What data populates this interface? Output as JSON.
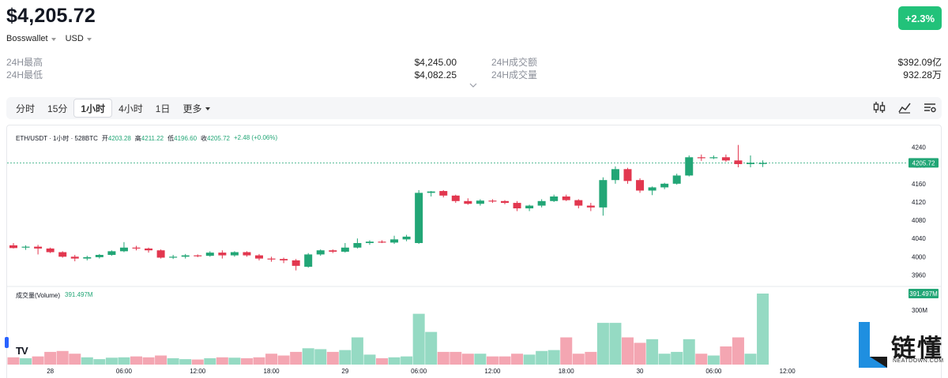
{
  "header": {
    "price": "$4,205.72",
    "change_badge": "+2.3%",
    "exchange": "Bosswallet",
    "currency": "USD"
  },
  "stats": {
    "high_label": "24H最高",
    "high_value": "$4,245.00",
    "low_label": "24H最低",
    "low_value": "$4,082.25",
    "turnover_label": "24H成交额",
    "turnover_value": "$392.09亿",
    "volume_label": "24H成交量",
    "volume_value": "932.28万"
  },
  "tabs": [
    "分时",
    "15分",
    "1小时",
    "4小时",
    "1日",
    "更多"
  ],
  "active_tab": "1小时",
  "icons": [
    "candlestick-icon",
    "indicator-icon",
    "settings-icon",
    "chevron-down-icon"
  ],
  "colors": {
    "up": "#22a676",
    "down": "#e2374f",
    "badge": "#22c27a",
    "accent": "#2962ff"
  },
  "chart_legend": {
    "symbol": "ETH/USDT · 1小时 · 528BTC",
    "open_label": "开",
    "open": "4203.28",
    "high_label": "高",
    "high": "4211.22",
    "low_label": "低",
    "low": "4196.60",
    "close_label": "收",
    "close": "4205.72",
    "change": "+2.48 (+0.06%)"
  },
  "volume_legend": {
    "label": "成交量(Volume)",
    "value": "391.497M"
  },
  "watermark": {
    "text": "链懂",
    "sub": "NEATDOWN.COM"
  },
  "chart_data": {
    "type": "candlestick",
    "price_axis": {
      "ylim": [
        3940,
        4260
      ],
      "ticks": [
        3960,
        4000,
        4040,
        4080,
        4120,
        4160,
        4200,
        4240
      ],
      "last_price": "4205.72",
      "last_value": 4205.72
    },
    "volume_axis": {
      "max_label": "391.497M",
      "tick_label": "300M",
      "tick_value": 300,
      "max_value": 391.497
    },
    "x_labels": [
      "28",
      "06:00",
      "12:00",
      "18:00",
      "29",
      "06:00",
      "12:00",
      "18:00",
      "30",
      "06:00",
      "12:00"
    ],
    "x_label_index": [
      3,
      9,
      15,
      21,
      27,
      33,
      39,
      45,
      51,
      57,
      63
    ],
    "candles": [
      {
        "o": 4025,
        "h": 4030,
        "l": 4018,
        "c": 4019,
        "v": 40
      },
      {
        "o": 4020,
        "h": 4025,
        "l": 4015,
        "c": 4022,
        "v": 35
      },
      {
        "o": 4022,
        "h": 4026,
        "l": 4005,
        "c": 4018,
        "v": 45
      },
      {
        "o": 4018,
        "h": 4020,
        "l": 4008,
        "c": 4010,
        "v": 70
      },
      {
        "o": 4010,
        "h": 4012,
        "l": 3998,
        "c": 4000,
        "v": 75
      },
      {
        "o": 4000,
        "h": 4004,
        "l": 3990,
        "c": 3996,
        "v": 60
      },
      {
        "o": 3996,
        "h": 4002,
        "l": 3992,
        "c": 3999,
        "v": 40
      },
      {
        "o": 3999,
        "h": 4006,
        "l": 3996,
        "c": 4004,
        "v": 30
      },
      {
        "o": 4004,
        "h": 4014,
        "l": 4002,
        "c": 4012,
        "v": 38
      },
      {
        "o": 4012,
        "h": 4032,
        "l": 4010,
        "c": 4020,
        "v": 40
      },
      {
        "o": 4020,
        "h": 4024,
        "l": 4014,
        "c": 4018,
        "v": 45
      },
      {
        "o": 4018,
        "h": 4020,
        "l": 4009,
        "c": 4014,
        "v": 40
      },
      {
        "o": 4014,
        "h": 4016,
        "l": 3996,
        "c": 3998,
        "v": 50
      },
      {
        "o": 3998,
        "h": 4004,
        "l": 3995,
        "c": 4000,
        "v": 35
      },
      {
        "o": 4000,
        "h": 4006,
        "l": 3996,
        "c": 4003,
        "v": 30
      },
      {
        "o": 4003,
        "h": 4005,
        "l": 3999,
        "c": 4002,
        "v": 28
      },
      {
        "o": 4002,
        "h": 4012,
        "l": 4000,
        "c": 4009,
        "v": 35
      },
      {
        "o": 4009,
        "h": 4014,
        "l": 3996,
        "c": 4003,
        "v": 40
      },
      {
        "o": 4003,
        "h": 4012,
        "l": 4000,
        "c": 4010,
        "v": 38
      },
      {
        "o": 4010,
        "h": 4012,
        "l": 4000,
        "c": 4003,
        "v": 35
      },
      {
        "o": 4003,
        "h": 4006,
        "l": 3992,
        "c": 3996,
        "v": 40
      },
      {
        "o": 3996,
        "h": 4000,
        "l": 3989,
        "c": 3995,
        "v": 60
      },
      {
        "o": 3995,
        "h": 3998,
        "l": 3986,
        "c": 3992,
        "v": 50
      },
      {
        "o": 3992,
        "h": 3995,
        "l": 3970,
        "c": 3980,
        "v": 70
      },
      {
        "o": 3978,
        "h": 4008,
        "l": 3976,
        "c": 4005,
        "v": 90
      },
      {
        "o": 4005,
        "h": 4016,
        "l": 4002,
        "c": 4014,
        "v": 85
      },
      {
        "o": 4014,
        "h": 4016,
        "l": 4008,
        "c": 4011,
        "v": 70
      },
      {
        "o": 4011,
        "h": 4030,
        "l": 4009,
        "c": 4020,
        "v": 80
      },
      {
        "o": 4020,
        "h": 4040,
        "l": 4018,
        "c": 4030,
        "v": 150
      },
      {
        "o": 4030,
        "h": 4036,
        "l": 4026,
        "c": 4033,
        "v": 55
      },
      {
        "o": 4033,
        "h": 4036,
        "l": 4030,
        "c": 4031,
        "v": 35
      },
      {
        "o": 4031,
        "h": 4046,
        "l": 4028,
        "c": 4038,
        "v": 40
      },
      {
        "o": 4038,
        "h": 4048,
        "l": 4034,
        "c": 4044,
        "v": 45
      },
      {
        "o": 4030,
        "h": 4146,
        "l": 4028,
        "c": 4140,
        "v": 280
      },
      {
        "o": 4140,
        "h": 4144,
        "l": 4132,
        "c": 4143,
        "v": 180
      },
      {
        "o": 4144,
        "h": 4146,
        "l": 4130,
        "c": 4134,
        "v": 70
      },
      {
        "o": 4134,
        "h": 4136,
        "l": 4118,
        "c": 4122,
        "v": 70
      },
      {
        "o": 4122,
        "h": 4128,
        "l": 4114,
        "c": 4116,
        "v": 60
      },
      {
        "o": 4116,
        "h": 4126,
        "l": 4112,
        "c": 4123,
        "v": 60
      },
      {
        "o": 4123,
        "h": 4126,
        "l": 4118,
        "c": 4122,
        "v": 45
      },
      {
        "o": 4122,
        "h": 4124,
        "l": 4115,
        "c": 4118,
        "v": 45
      },
      {
        "o": 4118,
        "h": 4122,
        "l": 4100,
        "c": 4106,
        "v": 60
      },
      {
        "o": 4106,
        "h": 4114,
        "l": 4100,
        "c": 4112,
        "v": 55
      },
      {
        "o": 4112,
        "h": 4126,
        "l": 4108,
        "c": 4122,
        "v": 75
      },
      {
        "o": 4122,
        "h": 4136,
        "l": 4120,
        "c": 4132,
        "v": 80
      },
      {
        "o": 4132,
        "h": 4136,
        "l": 4122,
        "c": 4124,
        "v": 150
      },
      {
        "o": 4124,
        "h": 4126,
        "l": 4106,
        "c": 4112,
        "v": 60
      },
      {
        "o": 4112,
        "h": 4118,
        "l": 4100,
        "c": 4108,
        "v": 70
      },
      {
        "o": 4108,
        "h": 4174,
        "l": 4090,
        "c": 4168,
        "v": 230
      },
      {
        "o": 4168,
        "h": 4198,
        "l": 4160,
        "c": 4192,
        "v": 230
      },
      {
        "o": 4192,
        "h": 4195,
        "l": 4160,
        "c": 4166,
        "v": 150
      },
      {
        "o": 4168,
        "h": 4172,
        "l": 4140,
        "c": 4145,
        "v": 120
      },
      {
        "o": 4145,
        "h": 4154,
        "l": 4135,
        "c": 4152,
        "v": 140
      },
      {
        "o": 4152,
        "h": 4162,
        "l": 4148,
        "c": 4160,
        "v": 60
      },
      {
        "o": 4160,
        "h": 4182,
        "l": 4158,
        "c": 4178,
        "v": 70
      },
      {
        "o": 4178,
        "h": 4222,
        "l": 4176,
        "c": 4218,
        "v": 140
      },
      {
        "o": 4218,
        "h": 4224,
        "l": 4210,
        "c": 4216,
        "v": 60
      },
      {
        "o": 4216,
        "h": 4222,
        "l": 4214,
        "c": 4218,
        "v": 50
      },
      {
        "o": 4218,
        "h": 4224,
        "l": 4208,
        "c": 4211,
        "v": 100
      },
      {
        "o": 4211,
        "h": 4245,
        "l": 4196,
        "c": 4203,
        "v": 150
      },
      {
        "o": 4203,
        "h": 4222,
        "l": 4196,
        "c": 4206,
        "v": 60
      },
      {
        "o": 4203.28,
        "h": 4211.22,
        "l": 4196.6,
        "c": 4205.72,
        "v": 391.497
      }
    ]
  }
}
